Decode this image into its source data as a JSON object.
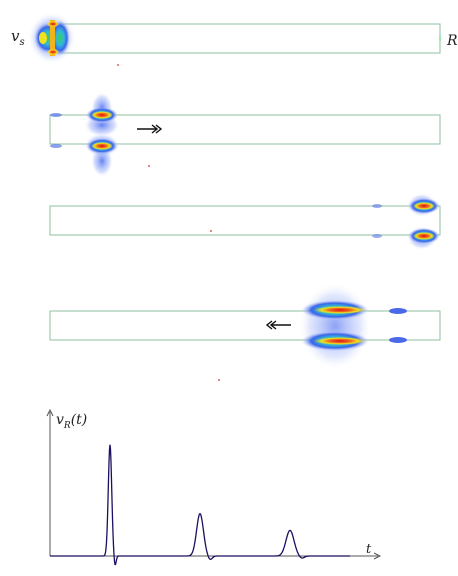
{
  "labels": {
    "source": "v",
    "source_sub": "s",
    "load": "R",
    "y_axis": "v",
    "y_axis_sub": "R",
    "y_axis_arg": "(t)",
    "x_axis": "t"
  },
  "panels": [
    {
      "id": "panel-1",
      "pulse_position": "source",
      "direction": "none"
    },
    {
      "id": "panel-2",
      "pulse_position": "near-start",
      "direction": "right"
    },
    {
      "id": "panel-3",
      "pulse_position": "load",
      "direction": "none"
    },
    {
      "id": "panel-4",
      "pulse_position": "reflected",
      "direction": "left"
    }
  ],
  "colors": {
    "line_outline": "#8fbf9f",
    "field_red": "#d11a1a",
    "field_yellow": "#f2e21a",
    "field_green": "#3ccf5a",
    "field_blue": "#3c64e8",
    "trace": "#1a1060",
    "axis": "#555555"
  },
  "chart_data": {
    "type": "line",
    "title": "",
    "xlabel": "t",
    "ylabel": "v_R(t)",
    "series": [
      {
        "name": "",
        "pulses": [
          {
            "t": 1.0,
            "amplitude": 1.0,
            "width": 0.06
          },
          {
            "t": 2.5,
            "amplitude": 0.38,
            "width": 0.12
          },
          {
            "t": 4.0,
            "amplitude": 0.23,
            "width": 0.14
          }
        ]
      }
    ],
    "xlim": [
      0,
      5.0
    ],
    "ylim": [
      -0.07,
      1.15
    ]
  }
}
